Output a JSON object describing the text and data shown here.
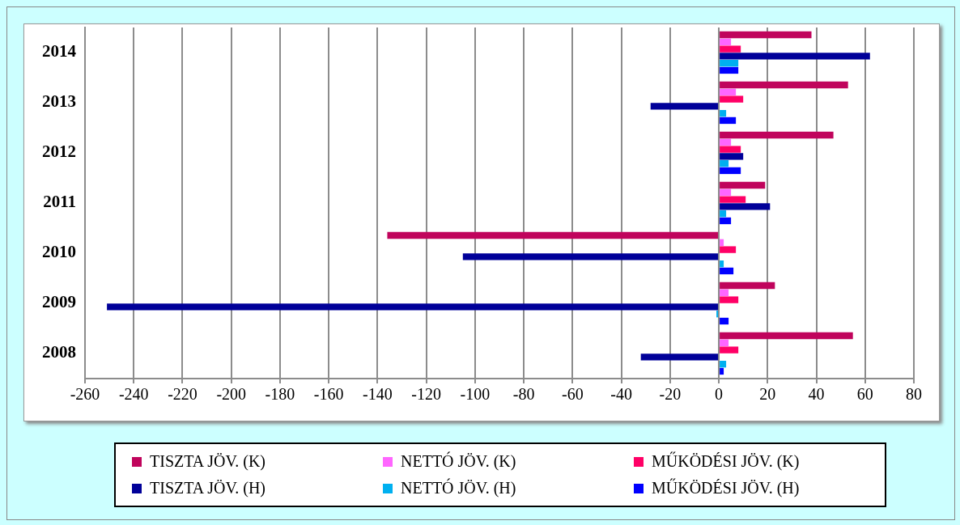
{
  "chart_data": {
    "type": "bar",
    "orientation": "horizontal",
    "categories": [
      "2014",
      "2013",
      "2012",
      "2011",
      "2010",
      "2009",
      "2008"
    ],
    "series": [
      {
        "name": "TISZTA JÖV. (K)",
        "color": "#c0045c",
        "values": [
          38,
          53,
          47,
          19,
          -136,
          23,
          55
        ]
      },
      {
        "name": "NETTÓ JÖV. (K)",
        "color": "#ff66ff",
        "values": [
          5,
          7,
          5,
          5,
          2,
          4,
          4
        ]
      },
      {
        "name": "MŰKÖDÉSI JÖV. (K)",
        "color": "#ff0066",
        "values": [
          9,
          10,
          9,
          11,
          7,
          8,
          8
        ]
      },
      {
        "name": "TISZTA JÖV. (H)",
        "color": "#000099",
        "values": [
          62,
          -28,
          10,
          21,
          -105,
          -251,
          -32
        ]
      },
      {
        "name": "NETTÓ JÖV. (H)",
        "color": "#00b0f0",
        "values": [
          8,
          3,
          4,
          3,
          2,
          -1,
          3
        ]
      },
      {
        "name": "MŰKÖDÉSI JÖV. (H)",
        "color": "#0000ff",
        "values": [
          8,
          7,
          9,
          5,
          6,
          4,
          2
        ]
      }
    ],
    "xlim": [
      -260,
      80
    ],
    "xticks": [
      -260,
      -240,
      -220,
      -200,
      -180,
      -160,
      -140,
      -120,
      -100,
      -80,
      -60,
      -40,
      -20,
      0,
      20,
      40,
      60,
      80
    ],
    "grid": "x",
    "legend": "bottom"
  }
}
